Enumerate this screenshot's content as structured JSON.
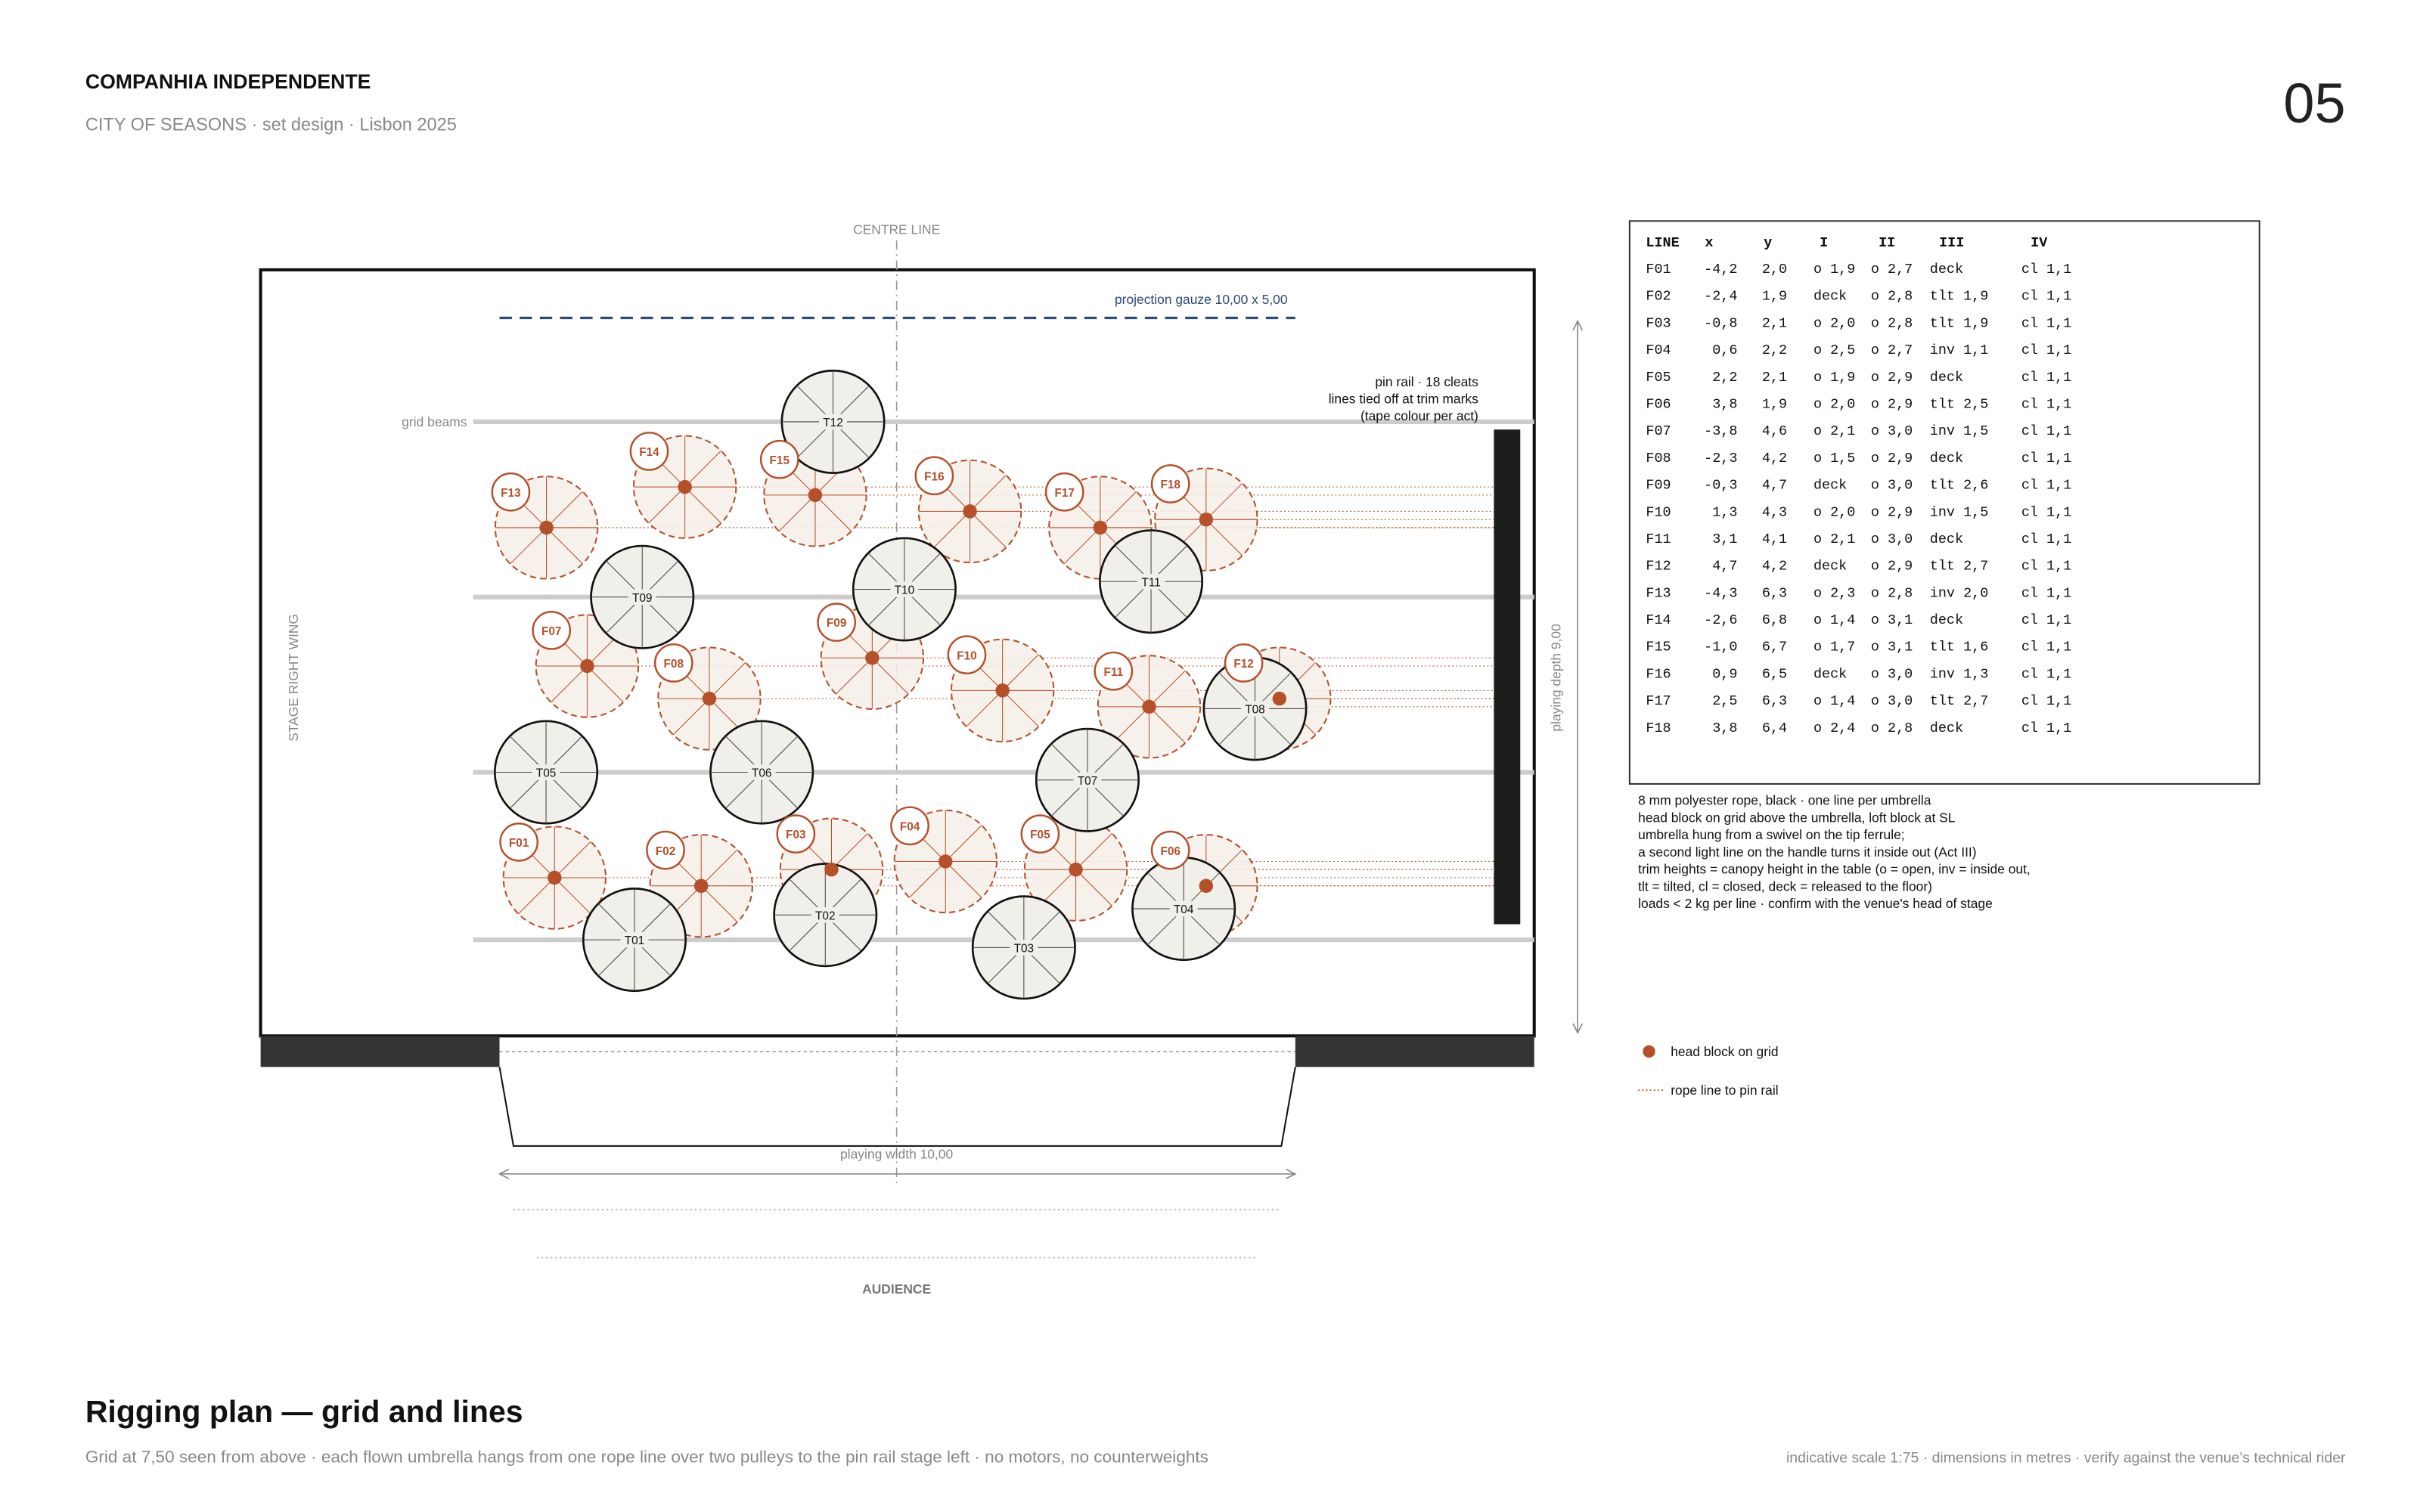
{
  "header": {
    "title": "COMPANHIA INDEPENDENTE",
    "subtitle": "CITY OF SEASONS  ·  set design  ·  Lisbon 2025",
    "page_number": "05"
  },
  "drawing": {
    "centre_line": "CENTRE LINE",
    "gauze_label": "projection gauze 10,00 x 5,00",
    "grid_beams_label": "grid beams",
    "pin_rail_note": [
      "pin rail · 18 cleats",
      "lines tied off at trim marks",
      "(tape colour per act)"
    ],
    "wing_label": "STAGE RIGHT WING",
    "depth_label": "playing depth 9,00",
    "width_label": "playing width 10,00",
    "audience_label": "AUDIENCE"
  },
  "fixed_umbrellas": [
    "T01",
    "T02",
    "T03",
    "T04",
    "T05",
    "T06",
    "T07",
    "T08",
    "T09",
    "T10",
    "T11",
    "T12"
  ],
  "table": {
    "columns": [
      "LINE",
      "x",
      "y",
      "I",
      "II",
      "III",
      "IV"
    ],
    "rows": [
      [
        "F01",
        "-4,2",
        "2,0",
        "o 1,9",
        "o 2,7",
        "deck",
        "cl 1,1"
      ],
      [
        "F02",
        "-2,4",
        "1,9",
        "deck",
        "o 2,8",
        "tlt 1,9",
        "cl 1,1"
      ],
      [
        "F03",
        "-0,8",
        "2,1",
        "o 2,0",
        "o 2,8",
        "tlt 1,9",
        "cl 1,1"
      ],
      [
        "F04",
        "0,6",
        "2,2",
        "o 2,5",
        "o 2,7",
        "inv 1,1",
        "cl 1,1"
      ],
      [
        "F05",
        "2,2",
        "2,1",
        "o 1,9",
        "o 2,9",
        "deck",
        "cl 1,1"
      ],
      [
        "F06",
        "3,8",
        "1,9",
        "o 2,0",
        "o 2,9",
        "tlt 2,5",
        "cl 1,1"
      ],
      [
        "F07",
        "-3,8",
        "4,6",
        "o 2,1",
        "o 3,0",
        "inv 1,5",
        "cl 1,1"
      ],
      [
        "F08",
        "-2,3",
        "4,2",
        "o 1,5",
        "o 2,9",
        "deck",
        "cl 1,1"
      ],
      [
        "F09",
        "-0,3",
        "4,7",
        "deck",
        "o 3,0",
        "tlt 2,6",
        "cl 1,1"
      ],
      [
        "F10",
        "1,3",
        "4,3",
        "o 2,0",
        "o 2,9",
        "inv 1,5",
        "cl 1,1"
      ],
      [
        "F11",
        "3,1",
        "4,1",
        "o 2,1",
        "o 3,0",
        "deck",
        "cl 1,1"
      ],
      [
        "F12",
        "4,7",
        "4,2",
        "deck",
        "o 2,9",
        "tlt 2,7",
        "cl 1,1"
      ],
      [
        "F13",
        "-4,3",
        "6,3",
        "o 2,3",
        "o 2,8",
        "inv 2,0",
        "cl 1,1"
      ],
      [
        "F14",
        "-2,6",
        "6,8",
        "o 1,4",
        "o 3,1",
        "deck",
        "cl 1,1"
      ],
      [
        "F15",
        "-1,0",
        "6,7",
        "o 1,7",
        "o 3,1",
        "tlt 1,6",
        "cl 1,1"
      ],
      [
        "F16",
        "0,9",
        "6,5",
        "deck",
        "o 3,0",
        "inv 1,3",
        "cl 1,1"
      ],
      [
        "F17",
        "2,5",
        "6,3",
        "o 1,4",
        "o 3,0",
        "tlt 2,7",
        "cl 1,1"
      ],
      [
        "F18",
        "3,8",
        "6,4",
        "o 2,4",
        "o 2,8",
        "deck",
        "cl 1,1"
      ]
    ]
  },
  "notes": [
    "8 mm polyester rope, black · one line per umbrella",
    "head block on grid above the umbrella, loft block at SL",
    "umbrella hung from a swivel on the tip ferrule;",
    "a second light line on the handle turns it inside out (Act III)",
    "trim heights = canopy height in the table (o = open, inv = inside out,",
    "tlt = tilted, cl = closed, deck = released to the floor)",
    "loads < 2 kg per line · confirm with the venue's head of stage"
  ],
  "legend": [
    "head block on grid",
    "rope line to pin rail"
  ],
  "footer": {
    "title": "Rigging plan — grid and lines",
    "caption": "Grid at 7,50 seen from above · each flown umbrella hangs from one rope line over two pulleys to the pin rail stage left · no motors, no counterweights",
    "scale_note": "indicative scale 1:75  ·  dimensions in metres  ·  verify against the venue's technical rider"
  }
}
